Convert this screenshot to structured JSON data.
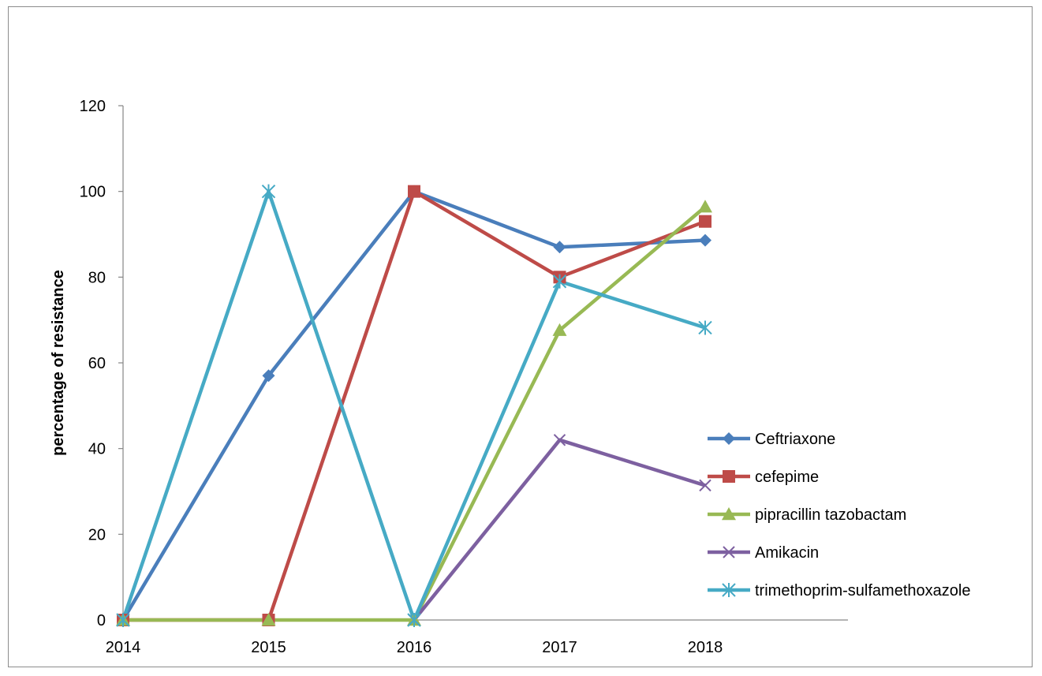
{
  "chart_data": {
    "type": "line",
    "title": "",
    "xlabel": "",
    "ylabel": "percentage  of resistance",
    "categories": [
      "2014",
      "2015",
      "2016",
      "2017",
      "2018"
    ],
    "ylim": [
      0,
      120
    ],
    "yticks": [
      0,
      20,
      40,
      60,
      80,
      100,
      120
    ],
    "grid": false,
    "legend_position": "right",
    "series": [
      {
        "name": "Ceftriaxone",
        "color": "#4a7ebb",
        "marker": "diamond",
        "values": [
          0,
          57,
          100,
          87,
          88.6
        ]
      },
      {
        "name": "cefepime",
        "color": "#be4b48",
        "marker": "square",
        "values": [
          0,
          0,
          100,
          80,
          93
        ]
      },
      {
        "name": "pipracillin tazobactam",
        "color": "#98b954",
        "marker": "triangle",
        "values": [
          0,
          0,
          0,
          67.6,
          96.4
        ]
      },
      {
        "name": "Amikacin",
        "color": "#7d60a0",
        "marker": "x",
        "values": [
          null,
          null,
          0,
          42,
          31.4
        ]
      },
      {
        "name": "trimethoprim-sulfamethoxazole",
        "color": "#46aac5",
        "marker": "star",
        "values": [
          0,
          100,
          0,
          79,
          68.2
        ]
      }
    ]
  }
}
